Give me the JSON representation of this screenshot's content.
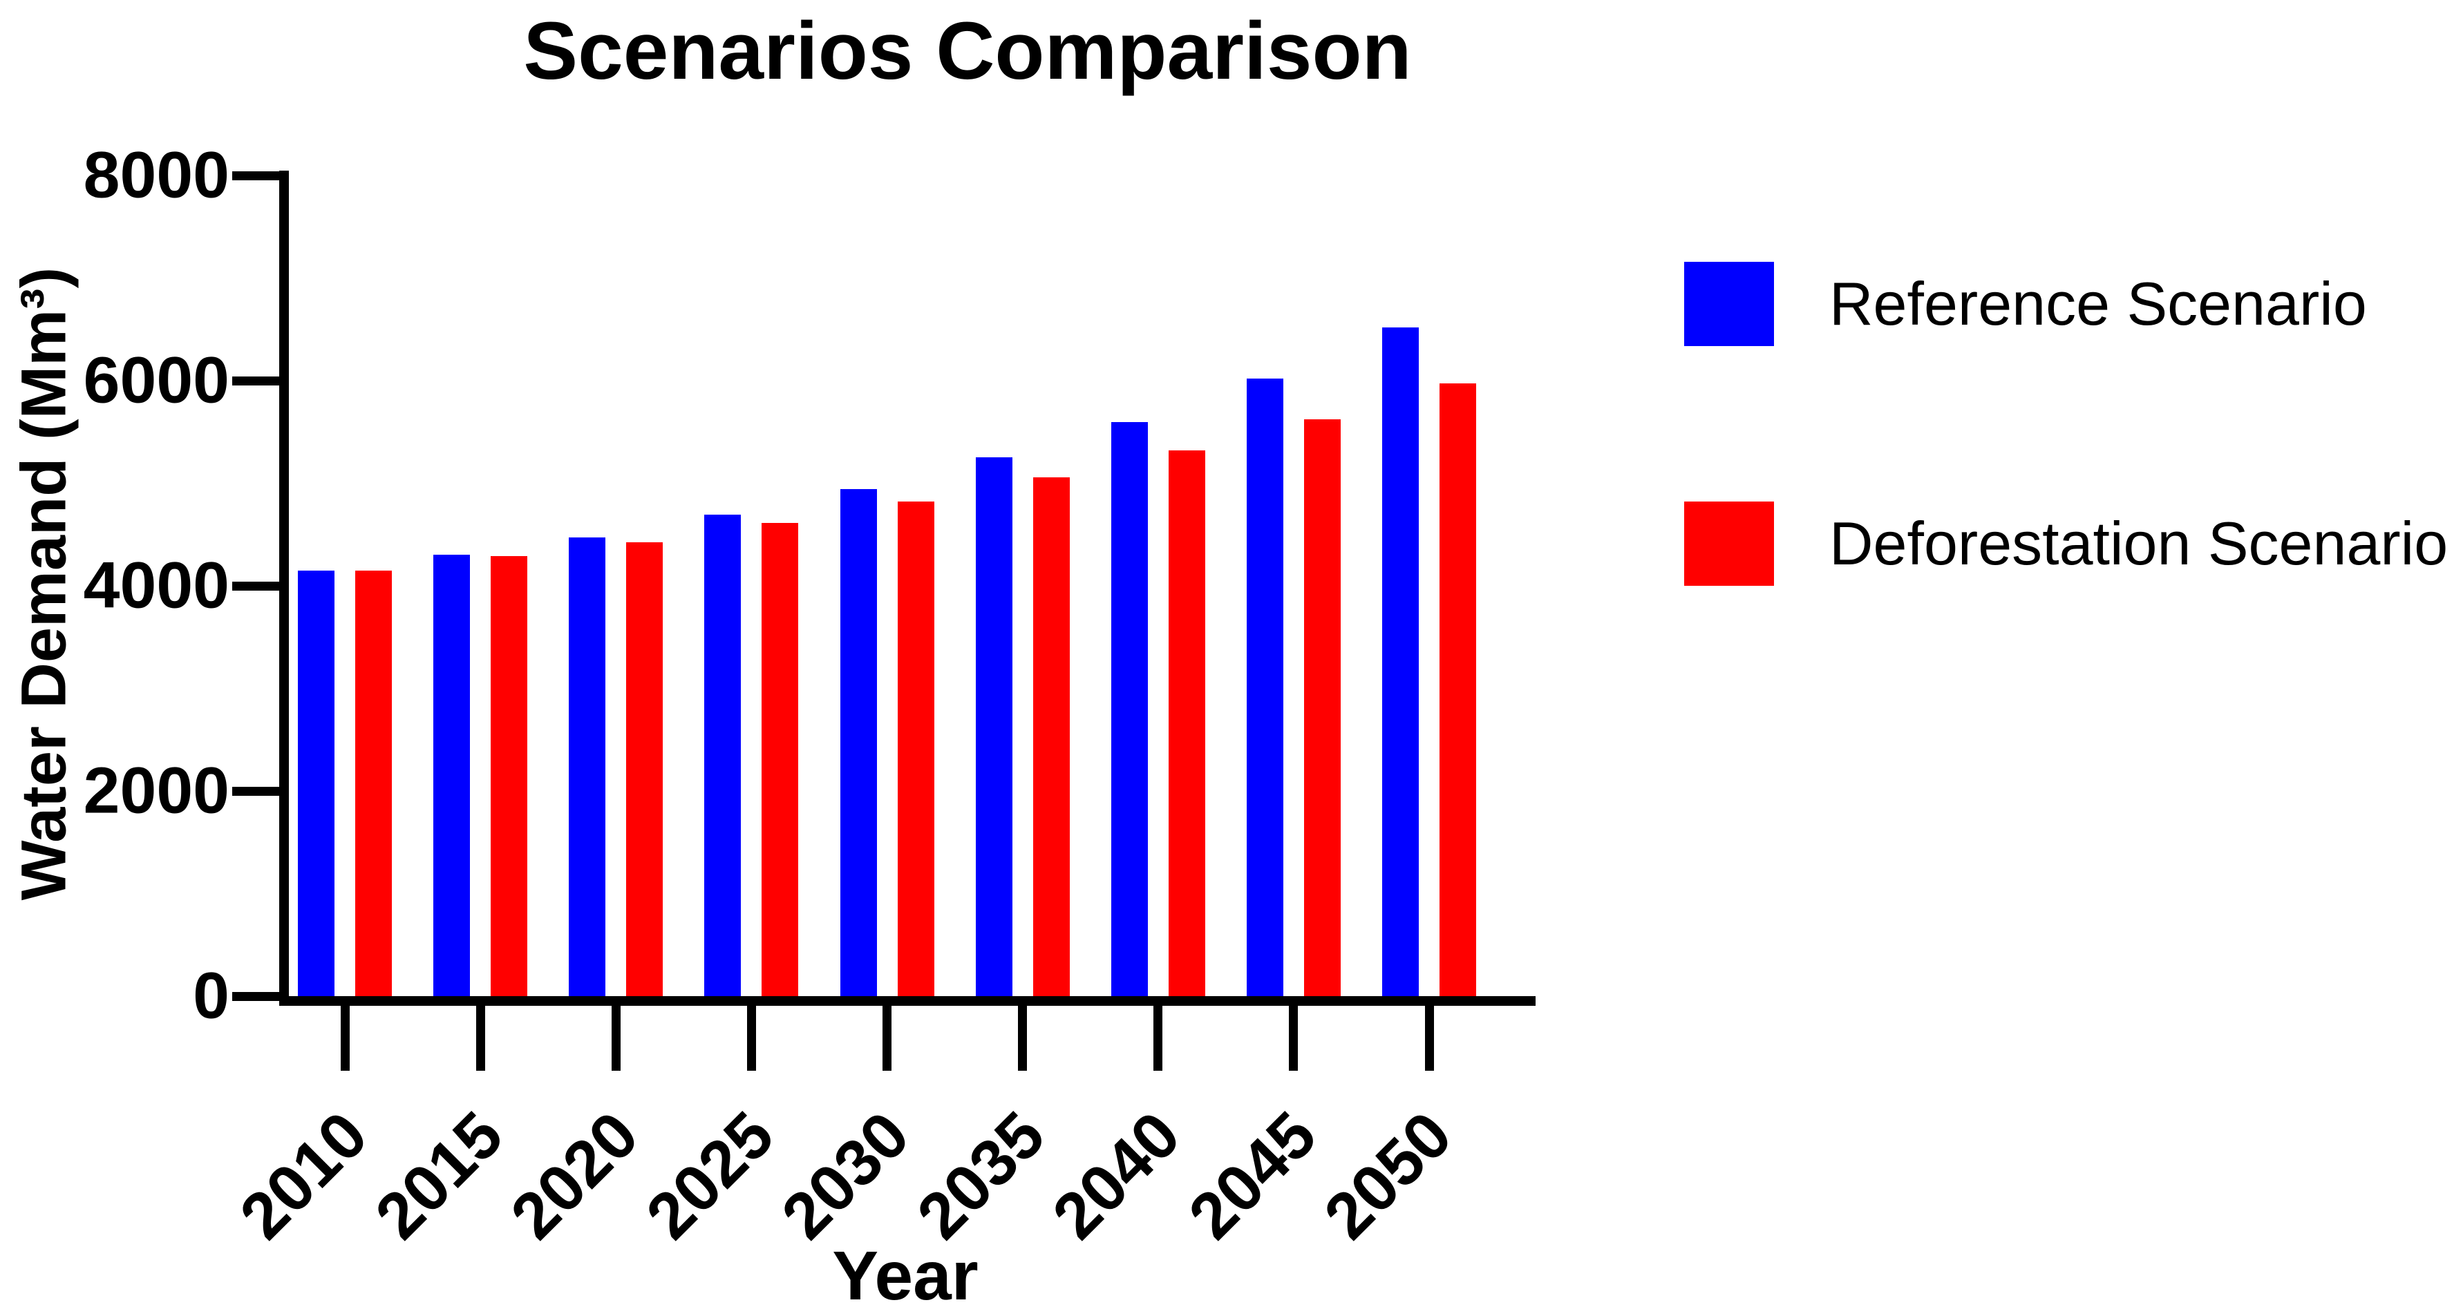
{
  "page": {
    "background_color": "#ffffff",
    "text_color": "#000000"
  },
  "chart_data": {
    "type": "bar",
    "title": "Scenarios Comparison",
    "xlabel": "Year",
    "ylabel": "Water Demand (Mm³)",
    "categories": [
      "2010",
      "2015",
      "2020",
      "2025",
      "2030",
      "2035",
      "2040",
      "2045",
      "2050"
    ],
    "series": [
      {
        "name": "Reference Scenario",
        "color": "#0000ff",
        "values": [
          4150,
          4305,
          4470,
          4695,
          4945,
          5250,
          5595,
          6020,
          6520
        ]
      },
      {
        "name": "Deforestation Scenario",
        "color": "#ff0000",
        "values": [
          4150,
          4290,
          4425,
          4615,
          4820,
          5060,
          5320,
          5625,
          5970
        ]
      }
    ],
    "ylim": [
      0,
      8000
    ],
    "yticks": [
      0,
      2000,
      4000,
      6000,
      8000
    ],
    "grid": false,
    "legend_position": "top-right",
    "bar_grouping": "grouped",
    "x_tick_label_rotation_deg": 45,
    "axis_color": "#000000"
  }
}
